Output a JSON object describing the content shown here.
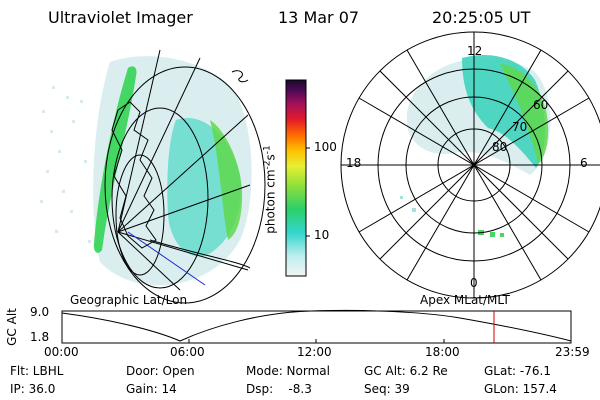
{
  "header": {
    "instrument": "Ultraviolet Imager",
    "date": "13 Mar 07",
    "time": "20:25:05 UT"
  },
  "colorbar": {
    "unit_label": "photon cm",
    "unit_sup1": "-2",
    "unit_mid": "s",
    "unit_sup2": "-1",
    "ticks": [
      "100",
      "10"
    ]
  },
  "geo_panel": {
    "label": "Geographic Lat/Lon"
  },
  "polar_panel": {
    "label": "Apex MLat/MLT",
    "mlt_labels": {
      "top": "12",
      "left": "18",
      "right": "6",
      "bottom": "0"
    },
    "lat_labels": [
      "60",
      "70",
      "80"
    ]
  },
  "timeline": {
    "axis_title": "GC Alt",
    "y_ticks": [
      "9.0",
      "1.8"
    ],
    "x_ticks": [
      "00:00",
      "06:00",
      "12:00",
      "18:00",
      "23:59"
    ],
    "marker_color": "#cc0000"
  },
  "info": {
    "filter": "Flt: LBHL",
    "ip": "IP: 36.0",
    "door": "Door: Open",
    "gain": "Gain: 14",
    "mode": "Mode: Normal",
    "dsp_label": "Dsp:",
    "dsp_value": "-8.3",
    "gc_alt": "GC Alt: 6.2 Re",
    "seq": "Seq: 39",
    "glat": "GLat: -76.1",
    "glon": "GLon: 157.4"
  }
}
